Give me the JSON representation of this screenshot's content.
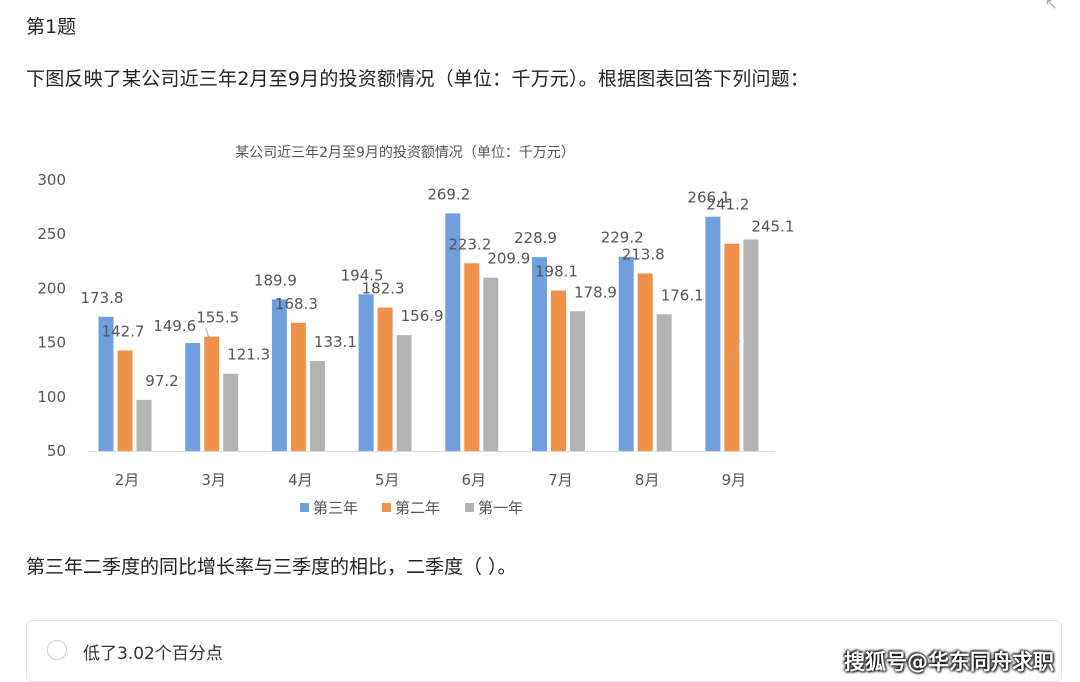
{
  "question": {
    "number": "第1题",
    "stem": "下图反映了某公司近三年2月至9月的投资额情况（单位：千万元）。根据图表回答下列问题：",
    "sub_question": "第三年二季度的同比增长率与三季度的相比，二季度（ ）。",
    "option_text": "低了3.02个百分点"
  },
  "watermark": "搜狐号@华东同舟求职",
  "colors": {
    "third_year": "#6f9fdc",
    "second_year": "#f0914a",
    "first_year": "#b3b3b3"
  },
  "chart_data": {
    "type": "bar",
    "title": "某公司近三年2月至9月的投资额情况（单位：千万元）",
    "categories": [
      "2月",
      "3月",
      "4月",
      "5月",
      "6月",
      "7月",
      "8月",
      "9月"
    ],
    "series": [
      {
        "name": "第三年",
        "values": [
          173.8,
          149.6,
          189.9,
          194.5,
          269.2,
          228.9,
          229.2,
          266.1
        ]
      },
      {
        "name": "第二年",
        "values": [
          142.7,
          155.5,
          168.3,
          182.3,
          223.2,
          198.1,
          213.8,
          241.2
        ]
      },
      {
        "name": "第一年",
        "values": [
          97.2,
          121.3,
          133.1,
          156.9,
          209.9,
          178.9,
          176.1,
          245.1
        ]
      }
    ],
    "ylim": [
      50,
      300
    ],
    "yticks": [
      50,
      100,
      150,
      200,
      250,
      300
    ],
    "grid": false,
    "legend": "bottom"
  }
}
